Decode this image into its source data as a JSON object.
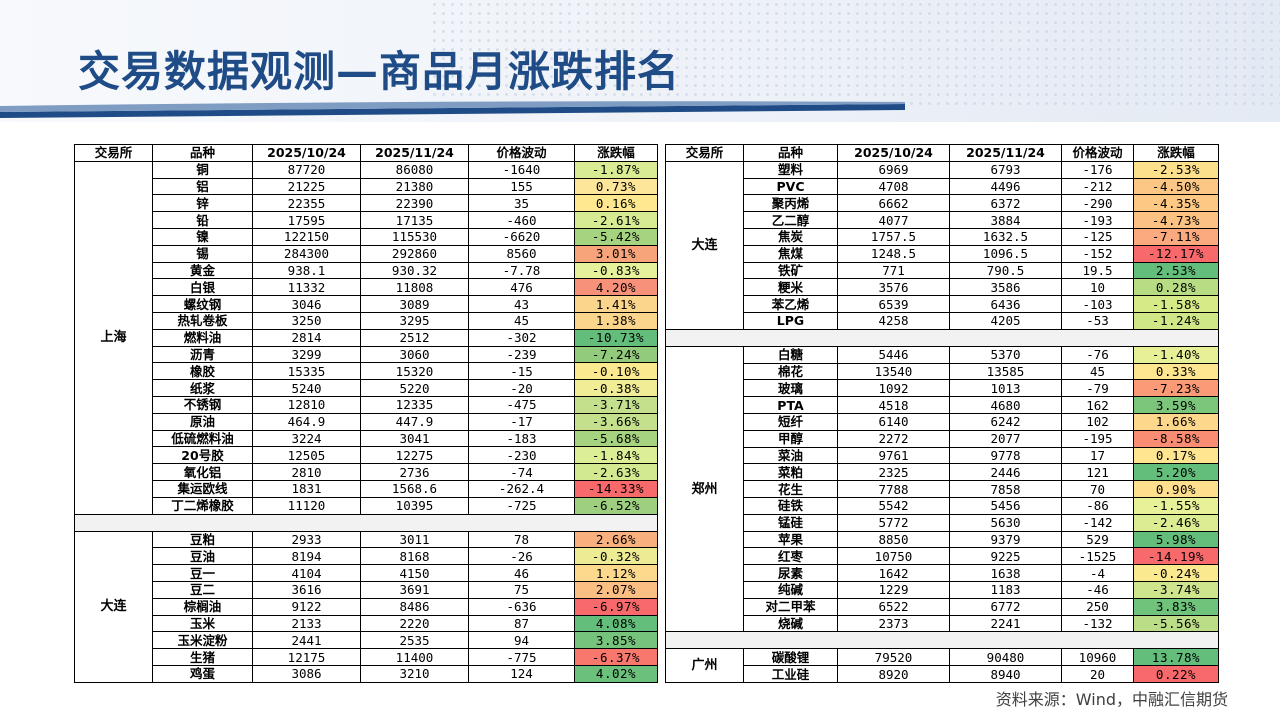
{
  "title": "交易数据观测—商品月涨跌排名",
  "footer": "资料来源：Wind，中融汇信期货",
  "headers": [
    "交易所",
    "品种",
    "2025/10/24",
    "2025/11/24",
    "价格波动",
    "涨跌幅"
  ],
  "left_groups": [
    {
      "exchange": "上海",
      "rows": [
        {
          "name": "铜",
          "d1": "87720",
          "d2": "86080",
          "diff": "-1640",
          "pct": "-1.87%",
          "color": "#d9ec94"
        },
        {
          "name": "铝",
          "d1": "21225",
          "d2": "21380",
          "diff": "155",
          "pct": "0.73%",
          "color": "#fde59a"
        },
        {
          "name": "锌",
          "d1": "22355",
          "d2": "22390",
          "diff": "35",
          "pct": "0.16%",
          "color": "#ffe88f"
        },
        {
          "name": "铅",
          "d1": "17595",
          "d2": "17135",
          "diff": "-460",
          "pct": "-2.61%",
          "color": "#d7eb92"
        },
        {
          "name": "镍",
          "d1": "122150",
          "d2": "115530",
          "diff": "-6620",
          "pct": "-5.42%",
          "color": "#a6d37f"
        },
        {
          "name": "锡",
          "d1": "284300",
          "d2": "292860",
          "diff": "8560",
          "pct": "3.01%",
          "color": "#f8a47b"
        },
        {
          "name": "黄金",
          "d1": "938.1",
          "d2": "930.32",
          "diff": "-7.78",
          "pct": "-0.83%",
          "color": "#e6f19b"
        },
        {
          "name": "白银",
          "d1": "11332",
          "d2": "11808",
          "diff": "476",
          "pct": "4.20%",
          "color": "#f7917a"
        },
        {
          "name": "螺纹钢",
          "d1": "3046",
          "d2": "3089",
          "diff": "43",
          "pct": "1.41%",
          "color": "#fcd58d"
        },
        {
          "name": "热轧卷板",
          "d1": "3250",
          "d2": "3295",
          "diff": "45",
          "pct": "1.38%",
          "color": "#fcd58d"
        },
        {
          "name": "燃料油",
          "d1": "2814",
          "d2": "2512",
          "diff": "-302",
          "pct": "-10.73%",
          "color": "#63be7b"
        },
        {
          "name": "沥青",
          "d1": "3299",
          "d2": "3060",
          "diff": "-239",
          "pct": "-7.24%",
          "color": "#93cb7d"
        },
        {
          "name": "橡胶",
          "d1": "15335",
          "d2": "15320",
          "diff": "-15",
          "pct": "-0.10%",
          "color": "#fbe98f"
        },
        {
          "name": "纸浆",
          "d1": "5240",
          "d2": "5220",
          "diff": "-20",
          "pct": "-0.38%",
          "color": "#f1ec96"
        },
        {
          "name": "不锈钢",
          "d1": "12810",
          "d2": "12335",
          "diff": "-475",
          "pct": "-3.71%",
          "color": "#c4e08c"
        },
        {
          "name": "原油",
          "d1": "464.9",
          "d2": "447.9",
          "diff": "-17",
          "pct": "-3.66%",
          "color": "#c4e08c"
        },
        {
          "name": "低硫燃料油",
          "d1": "3224",
          "d2": "3041",
          "diff": "-183",
          "pct": "-5.68%",
          "color": "#a6d37f"
        },
        {
          "name": "20号胶",
          "d1": "12505",
          "d2": "12275",
          "diff": "-230",
          "pct": "-1.84%",
          "color": "#dcee96"
        },
        {
          "name": "氧化铝",
          "d1": "2810",
          "d2": "2736",
          "diff": "-74",
          "pct": "-2.63%",
          "color": "#d2e990"
        },
        {
          "name": "集运欧线",
          "d1": "1831",
          "d2": "1568.6",
          "diff": "-262.4",
          "pct": "-14.33%",
          "color": "#f8696b"
        },
        {
          "name": "丁二烯橡胶",
          "d1": "11120",
          "d2": "10395",
          "diff": "-725",
          "pct": "-6.52%",
          "color": "#9ecf7e"
        }
      ]
    },
    {
      "exchange": "大连",
      "rows": [
        {
          "name": "豆粕",
          "d1": "2933",
          "d2": "3011",
          "diff": "78",
          "pct": "2.66%",
          "color": "#f9b07f"
        },
        {
          "name": "豆油",
          "d1": "8194",
          "d2": "8168",
          "diff": "-26",
          "pct": "-0.32%",
          "color": "#eeeb95"
        },
        {
          "name": "豆一",
          "d1": "4104",
          "d2": "4150",
          "diff": "46",
          "pct": "1.12%",
          "color": "#fcd98c"
        },
        {
          "name": "豆二",
          "d1": "3616",
          "d2": "3691",
          "diff": "75",
          "pct": "2.07%",
          "color": "#fbbf83"
        },
        {
          "name": "棕榈油",
          "d1": "9122",
          "d2": "8486",
          "diff": "-636",
          "pct": "-6.97%",
          "color": "#f8696b"
        },
        {
          "name": "玉米",
          "d1": "2133",
          "d2": "2220",
          "diff": "87",
          "pct": "4.08%",
          "color": "#63be7b"
        },
        {
          "name": "玉米淀粉",
          "d1": "2441",
          "d2": "2535",
          "diff": "94",
          "pct": "3.85%",
          "color": "#76c47c"
        },
        {
          "name": "生猪",
          "d1": "12175",
          "d2": "11400",
          "diff": "-775",
          "pct": "-6.37%",
          "color": "#f8786e"
        },
        {
          "name": "鸡蛋",
          "d1": "3086",
          "d2": "3210",
          "diff": "124",
          "pct": "4.02%",
          "color": "#6bc17b"
        }
      ]
    }
  ],
  "right_groups": [
    {
      "exchange": "大连",
      "rows": [
        {
          "name": "塑料",
          "d1": "6969",
          "d2": "6793",
          "diff": "-176",
          "pct": "-2.53%",
          "color": "#fde08c"
        },
        {
          "name": "PVC",
          "d1": "4708",
          "d2": "4496",
          "diff": "-212",
          "pct": "-4.50%",
          "color": "#fcc784"
        },
        {
          "name": "聚丙烯",
          "d1": "6662",
          "d2": "6372",
          "diff": "-290",
          "pct": "-4.35%",
          "color": "#fcc884"
        },
        {
          "name": "乙二醇",
          "d1": "4077",
          "d2": "3884",
          "diff": "-193",
          "pct": "-4.73%",
          "color": "#fcc283"
        },
        {
          "name": "焦炭",
          "d1": "1757.5",
          "d2": "1632.5",
          "diff": "-125",
          "pct": "-7.11%",
          "color": "#fba97e"
        },
        {
          "name": "焦煤",
          "d1": "1248.5",
          "d2": "1096.5",
          "diff": "-152",
          "pct": "-12.17%",
          "color": "#f8696b"
        },
        {
          "name": "铁矿",
          "d1": "771",
          "d2": "790.5",
          "diff": "19.5",
          "pct": "2.53%",
          "color": "#63be7b"
        },
        {
          "name": "粳米",
          "d1": "3576",
          "d2": "3586",
          "diff": "10",
          "pct": "0.28%",
          "color": "#b7dc83"
        },
        {
          "name": "苯乙烯",
          "d1": "6539",
          "d2": "6436",
          "diff": "-103",
          "pct": "-1.58%",
          "color": "#d6ea88"
        },
        {
          "name": "LPG",
          "d1": "4258",
          "d2": "4205",
          "diff": "-53",
          "pct": "-1.24%",
          "color": "#cfe787"
        }
      ]
    },
    {
      "exchange": "郑州",
      "rows": [
        {
          "name": "白糖",
          "d1": "5446",
          "d2": "5370",
          "diff": "-76",
          "pct": "-1.40%",
          "color": "#e7f097"
        },
        {
          "name": "棉花",
          "d1": "13540",
          "d2": "13585",
          "diff": "45",
          "pct": "0.33%",
          "color": "#fee58f"
        },
        {
          "name": "玻璃",
          "d1": "1092",
          "d2": "1013",
          "diff": "-79",
          "pct": "-7.23%",
          "color": "#fa9a76"
        },
        {
          "name": "PTA",
          "d1": "4518",
          "d2": "4680",
          "diff": "162",
          "pct": "3.59%",
          "color": "#7cc67c"
        },
        {
          "name": "短纤",
          "d1": "6140",
          "d2": "6242",
          "diff": "102",
          "pct": "1.66%",
          "color": "#fdd78c"
        },
        {
          "name": "甲醇",
          "d1": "2272",
          "d2": "2077",
          "diff": "-195",
          "pct": "-8.58%",
          "color": "#f98d73"
        },
        {
          "name": "菜油",
          "d1": "9761",
          "d2": "9778",
          "diff": "17",
          "pct": "0.17%",
          "color": "#ffe590"
        },
        {
          "name": "菜粕",
          "d1": "2325",
          "d2": "2446",
          "diff": "121",
          "pct": "5.20%",
          "color": "#63be7b"
        },
        {
          "name": "花生",
          "d1": "7788",
          "d2": "7858",
          "diff": "70",
          "pct": "0.90%",
          "color": "#fedf8d"
        },
        {
          "name": "硅铁",
          "d1": "5542",
          "d2": "5456",
          "diff": "-86",
          "pct": "-1.55%",
          "color": "#e9f198"
        },
        {
          "name": "锰硅",
          "d1": "5772",
          "d2": "5630",
          "diff": "-142",
          "pct": "-2.46%",
          "color": "#dcec93"
        },
        {
          "name": "苹果",
          "d1": "8850",
          "d2": "9379",
          "diff": "529",
          "pct": "5.98%",
          "color": "#63be7b"
        },
        {
          "name": "红枣",
          "d1": "10750",
          "d2": "9225",
          "diff": "-1525",
          "pct": "-14.19%",
          "color": "#f8696b"
        },
        {
          "name": "尿素",
          "d1": "1642",
          "d2": "1638",
          "diff": "-4",
          "pct": "-0.24%",
          "color": "#fbe98f"
        },
        {
          "name": "纯碱",
          "d1": "1229",
          "d2": "1183",
          "diff": "-46",
          "pct": "-3.74%",
          "color": "#cee58e"
        },
        {
          "name": "对二甲苯",
          "d1": "6522",
          "d2": "6772",
          "diff": "250",
          "pct": "3.83%",
          "color": "#6fc37b"
        },
        {
          "name": "烧碱",
          "d1": "2373",
          "d2": "2241",
          "diff": "-132",
          "pct": "-5.56%",
          "color": "#bcdd88"
        }
      ]
    },
    {
      "exchange": "广州",
      "rows": [
        {
          "name": "碳酸锂",
          "d1": "79520",
          "d2": "90480",
          "diff": "10960",
          "pct": "13.78%",
          "color": "#63be7b"
        },
        {
          "name": "工业硅",
          "d1": "8920",
          "d2": "8940",
          "diff": "20",
          "pct": "0.22%",
          "color": "#f8696b"
        }
      ]
    }
  ]
}
